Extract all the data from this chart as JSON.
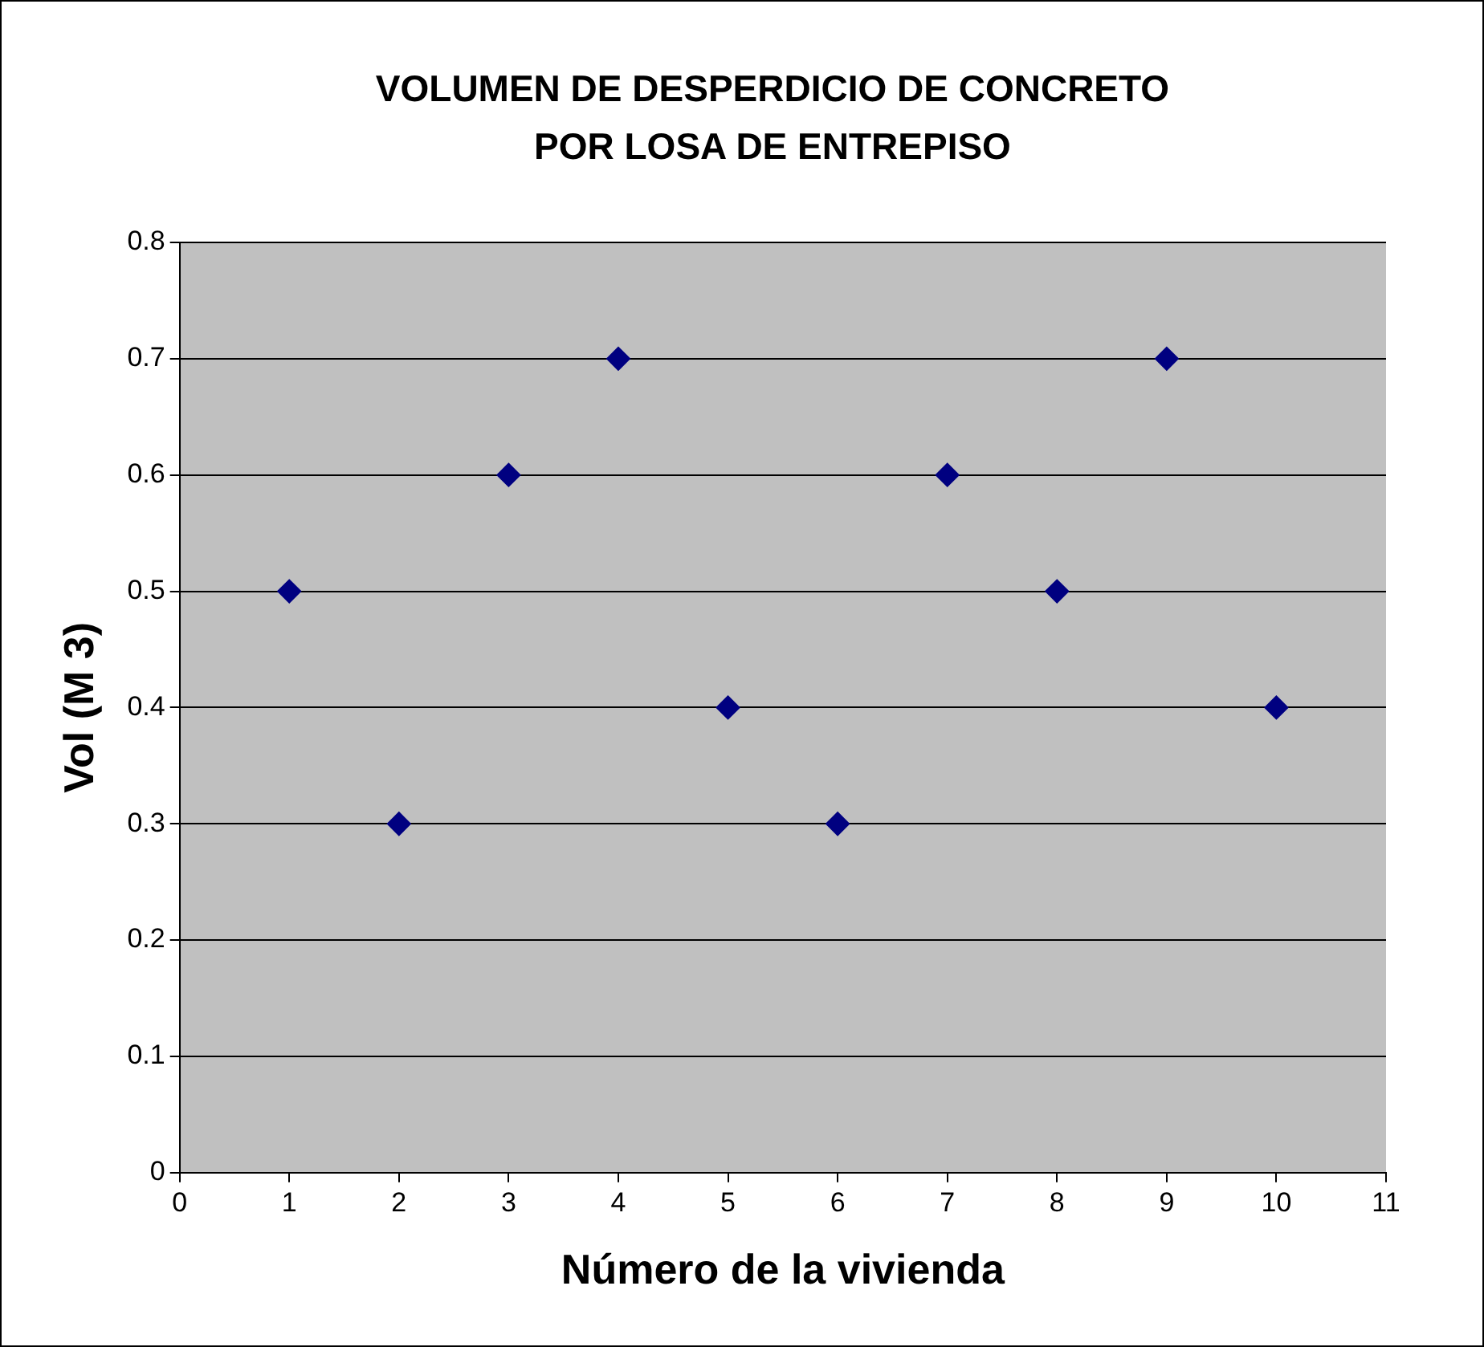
{
  "chart_data": {
    "type": "scatter",
    "title": "VOLUMEN DE DESPERDICIO DE CONCRETO POR LOSA DE ENTREPISO",
    "xlabel": "Número de la vivienda",
    "ylabel": "Vol (M 3)",
    "x": [
      1,
      2,
      3,
      4,
      5,
      6,
      7,
      8,
      9,
      10
    ],
    "series": [
      {
        "color": "#000080",
        "values": [
          0.5,
          0.3,
          0.6,
          0.7,
          0.4,
          0.3,
          0.6,
          0.5,
          0.7,
          0.4
        ]
      }
    ],
    "xlim": [
      0,
      11
    ],
    "xticks": [
      0,
      1,
      2,
      3,
      4,
      5,
      6,
      7,
      8,
      9,
      10,
      11
    ],
    "ylim": [
      0,
      0.8
    ],
    "yticks": [
      0,
      0.1,
      0.2,
      0.3,
      0.4,
      0.5,
      0.6,
      0.7,
      0.8
    ],
    "grid": "y",
    "legend": false,
    "marker": "diamond"
  }
}
